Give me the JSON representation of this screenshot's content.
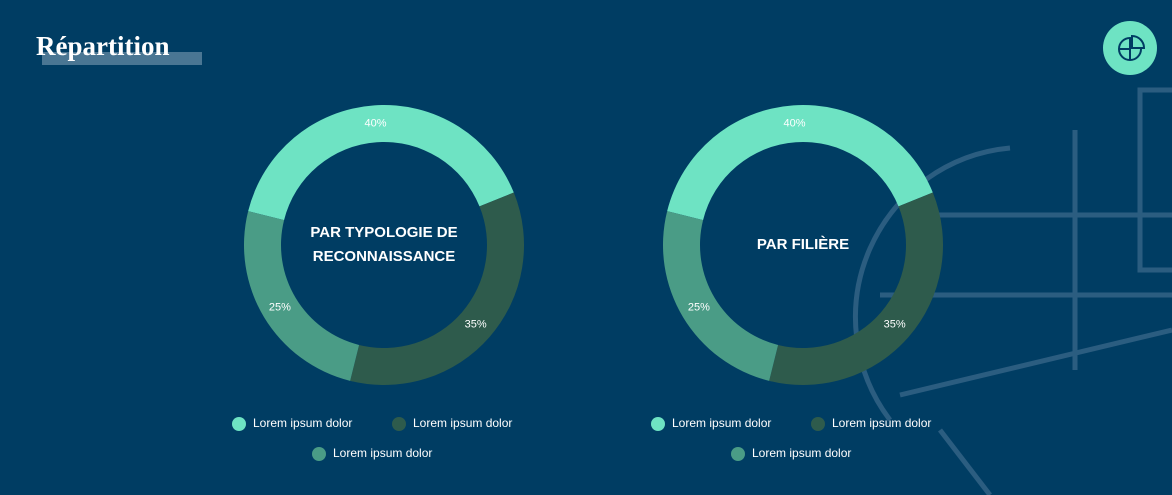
{
  "header": {
    "title": "Répartition"
  },
  "chart_data": [
    {
      "type": "donut",
      "center_label": [
        "PAR TYPOLOGIE DE",
        "RECONNAISSANCE"
      ],
      "categories": [
        "Lorem ipsum dolor",
        "Lorem ipsum dolor",
        "Lorem ipsum dolor"
      ],
      "values": [
        40,
        35,
        25
      ],
      "value_labels": [
        "40%",
        "35%",
        "25%"
      ],
      "colors": [
        "#6ee3c3",
        "#2e5b4c",
        "#4a9c86"
      ]
    },
    {
      "type": "donut",
      "center_label": [
        "PAR FILIÈRE"
      ],
      "categories": [
        "Lorem ipsum dolor",
        "Lorem ipsum dolor",
        "Lorem ipsum dolor"
      ],
      "values": [
        40,
        35,
        25
      ],
      "value_labels": [
        "40%",
        "35%",
        "25%"
      ],
      "colors": [
        "#6ee3c3",
        "#2e5b4c",
        "#4a9c86"
      ]
    }
  ]
}
